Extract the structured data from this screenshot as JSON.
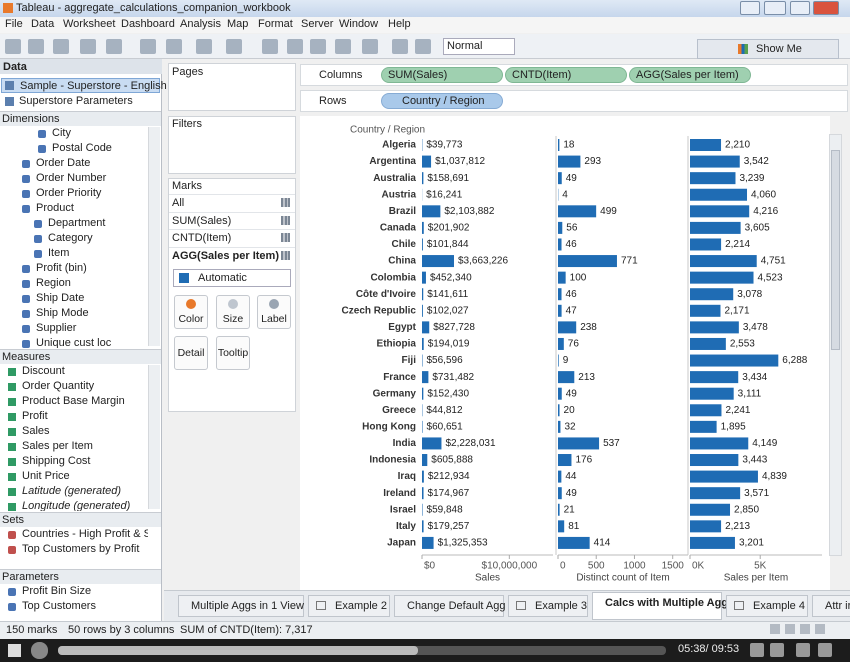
{
  "window": {
    "title": "Tableau - aggregate_calculations_companion_workbook"
  },
  "menu": [
    "File",
    "Data",
    "Worksheet",
    "Dashboard",
    "Analysis",
    "Map",
    "Format",
    "Server",
    "Window",
    "Help"
  ],
  "toolbar": {
    "format": "Normal",
    "show_me": "Show Me"
  },
  "data_pane": {
    "title": "Data",
    "sources": [
      "Sample - Superstore - English ...",
      "Superstore Parameters"
    ],
    "sections": [
      {
        "title": "Dimensions",
        "items": [
          "City",
          "Postal Code",
          "Order Date",
          "Order Number",
          "Order Priority",
          "Product",
          "Department",
          "Category",
          "Item",
          "Profit (bin)",
          "Region",
          "Ship Date",
          "Ship Mode",
          "Supplier",
          "Unique cust loc"
        ]
      },
      {
        "title": "Measures",
        "items": [
          "Discount",
          "Order Quantity",
          "Product Base Margin",
          "Profit",
          "Sales",
          "Sales per Item",
          "Shipping Cost",
          "Unit Price",
          "Latitude (generated)",
          "Longitude (generated)"
        ]
      },
      {
        "title": "Sets",
        "items": [
          "Countries - High Profit & Sales",
          "Top Customers by Profit"
        ]
      },
      {
        "title": "Parameters",
        "items": [
          "Profit Bin Size",
          "Top Customers"
        ]
      }
    ]
  },
  "shelves": {
    "pages": "Pages",
    "filters": "Filters",
    "columns": {
      "label": "Columns",
      "pills": [
        "SUM(Sales)",
        "CNTD(Item)",
        "AGG(Sales per Item)"
      ]
    },
    "rows": {
      "label": "Rows",
      "pills": [
        "Country / Region"
      ]
    }
  },
  "marks": {
    "title": "Marks",
    "cards": [
      "All",
      "SUM(Sales)",
      "CNTD(Item)",
      "AGG(Sales per Item)"
    ],
    "mark_type": "Automatic",
    "buttons": [
      "Color",
      "Size",
      "Label",
      "Detail",
      "Tooltip"
    ]
  },
  "chart_data": {
    "type": "bar",
    "orientation": "horizontal",
    "category_header": "Country / Region",
    "categories": [
      "Algeria",
      "Argentina",
      "Australia",
      "Austria",
      "Brazil",
      "Canada",
      "Chile",
      "China",
      "Colombia",
      "Côte d'Ivoire",
      "Czech Republic",
      "Egypt",
      "Ethiopia",
      "Fiji",
      "France",
      "Germany",
      "Greece",
      "Hong Kong",
      "India",
      "Indonesia",
      "Iraq",
      "Ireland",
      "Israel",
      "Italy",
      "Japan"
    ],
    "panes": [
      {
        "x_label": "Sales",
        "color": "#1f6cb4",
        "values": [
          39773,
          1037812,
          158691,
          16241,
          2103882,
          201902,
          101844,
          3663226,
          452340,
          141611,
          102027,
          827728,
          194019,
          56596,
          731482,
          152430,
          44812,
          60651,
          2228031,
          605888,
          212934,
          174967,
          59848,
          179257,
          1325353
        ],
        "value_labels": [
          "$39,773",
          "$1,037,812",
          "$158,691",
          "$16,241",
          "$2,103,882",
          "$201,902",
          "$101,844",
          "$3,663,226",
          "$452,340",
          "$141,611",
          "$102,027",
          "$827,728",
          "$194,019",
          "$56,596",
          "$731,482",
          "$152,430",
          "$44,812",
          "$60,651",
          "$2,228,031",
          "$605,888",
          "$212,934",
          "$174,967",
          "$59,848",
          "$179,257",
          "$1,325,353"
        ],
        "xlim": [
          0,
          15000000
        ],
        "xticks": [
          {
            "value": 0,
            "label": "$0"
          },
          {
            "value": 10000000,
            "label": "$10,000,000"
          }
        ]
      },
      {
        "x_label": "Distinct count of Item",
        "color": "#1f6cb4",
        "values": [
          18,
          293,
          49,
          4,
          499,
          56,
          46,
          771,
          100,
          46,
          47,
          238,
          76,
          9,
          213,
          49,
          20,
          32,
          537,
          176,
          44,
          49,
          21,
          81,
          414
        ],
        "xlim": [
          0,
          1700
        ],
        "xticks": [
          0,
          500,
          1000,
          1500
        ]
      },
      {
        "x_label": "Sales per Item",
        "color": "#1f6cb4",
        "values": [
          2210,
          3542,
          3239,
          4060,
          4216,
          3605,
          2214,
          4751,
          4523,
          3078,
          2171,
          3478,
          2553,
          6288,
          3434,
          3111,
          2241,
          1895,
          4149,
          3443,
          4839,
          3571,
          2850,
          2213,
          3201
        ],
        "value_labels": [
          "2,210",
          "3,542",
          "3,239",
          "4,060",
          "4,216",
          "3,605",
          "2,214",
          "4,751",
          "4,523",
          "3,078",
          "2,171",
          "3,478",
          "2,553",
          "6,288",
          "3,434",
          "3,111",
          "2,241",
          "1,895",
          "4,149",
          "3,443",
          "4,839",
          "3,571",
          "2,850",
          "2,213",
          "3,201"
        ],
        "xlim": [
          0,
          9400
        ],
        "xticks": [
          {
            "value": 0,
            "label": "0K"
          },
          {
            "value": 5000,
            "label": "5K"
          }
        ]
      }
    ]
  },
  "sheet_tabs": [
    "Multiple Aggs in 1 View",
    "Example 2",
    "Change Default Agg",
    "Example 3",
    "Calcs with Multiple Aggs",
    "Example 4",
    "Attr ir"
  ],
  "status": [
    "150 marks",
    "50 rows by 3 columns",
    "SUM of CNTD(Item): 7,317"
  ],
  "player": {
    "time": "05:38/ 09:53"
  }
}
